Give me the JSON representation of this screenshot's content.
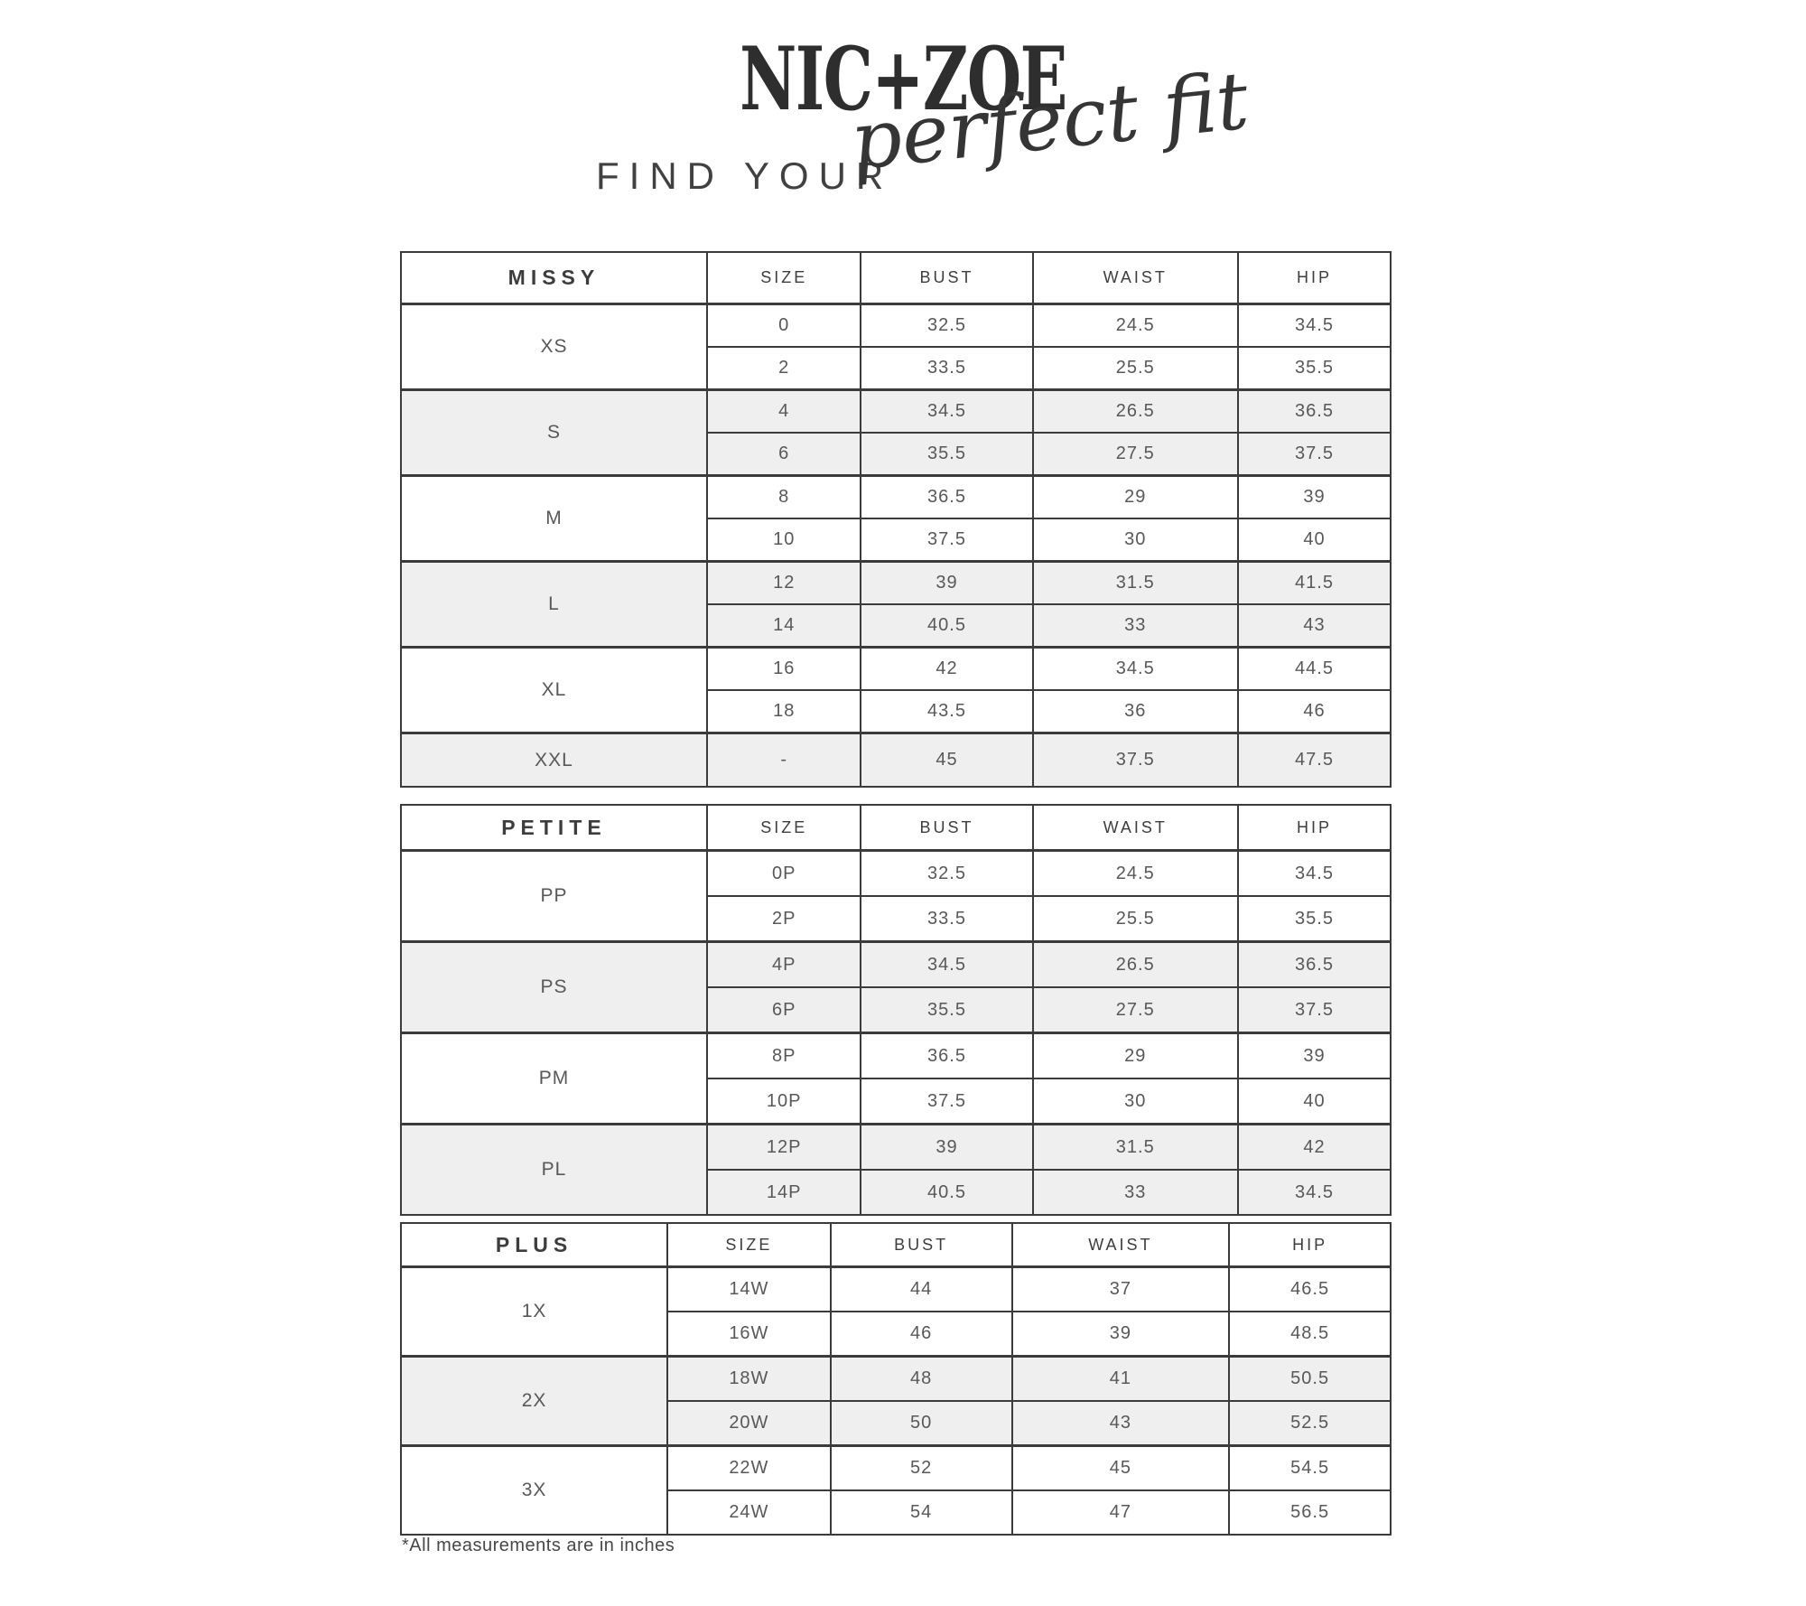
{
  "header": {
    "brand": "NIC+ZOE",
    "tagline_prefix": "FIND YOUR",
    "tagline_script": "perfect fit"
  },
  "colors": {
    "border": "#3b3b3b",
    "row_shade": "#efefef",
    "text_primary": "#3d3d3d",
    "text_secondary": "#585858"
  },
  "tables": [
    {
      "id": "missy",
      "title": "MISSY",
      "columns": [
        "SIZE",
        "BUST",
        "WAIST",
        "HIP"
      ],
      "groups": [
        {
          "label": "XS",
          "shaded": false,
          "rows": [
            [
              "0",
              "32.5",
              "24.5",
              "34.5"
            ],
            [
              "2",
              "33.5",
              "25.5",
              "35.5"
            ]
          ]
        },
        {
          "label": "S",
          "shaded": true,
          "rows": [
            [
              "4",
              "34.5",
              "26.5",
              "36.5"
            ],
            [
              "6",
              "35.5",
              "27.5",
              "37.5"
            ]
          ]
        },
        {
          "label": "M",
          "shaded": false,
          "rows": [
            [
              "8",
              "36.5",
              "29",
              "39"
            ],
            [
              "10",
              "37.5",
              "30",
              "40"
            ]
          ]
        },
        {
          "label": "L",
          "shaded": true,
          "rows": [
            [
              "12",
              "39",
              "31.5",
              "41.5"
            ],
            [
              "14",
              "40.5",
              "33",
              "43"
            ]
          ]
        },
        {
          "label": "XL",
          "shaded": false,
          "rows": [
            [
              "16",
              "42",
              "34.5",
              "44.5"
            ],
            [
              "18",
              "43.5",
              "36",
              "46"
            ]
          ]
        },
        {
          "label": "XXL",
          "shaded": true,
          "rows": [
            [
              "-",
              "45",
              "37.5",
              "47.5"
            ]
          ]
        }
      ]
    },
    {
      "id": "petite",
      "title": "PETITE",
      "columns": [
        "SIZE",
        "BUST",
        "WAIST",
        "HIP"
      ],
      "groups": [
        {
          "label": "PP",
          "shaded": false,
          "rows": [
            [
              "0P",
              "32.5",
              "24.5",
              "34.5"
            ],
            [
              "2P",
              "33.5",
              "25.5",
              "35.5"
            ]
          ]
        },
        {
          "label": "PS",
          "shaded": true,
          "rows": [
            [
              "4P",
              "34.5",
              "26.5",
              "36.5"
            ],
            [
              "6P",
              "35.5",
              "27.5",
              "37.5"
            ]
          ]
        },
        {
          "label": "PM",
          "shaded": false,
          "rows": [
            [
              "8P",
              "36.5",
              "29",
              "39"
            ],
            [
              "10P",
              "37.5",
              "30",
              "40"
            ]
          ]
        },
        {
          "label": "PL",
          "shaded": true,
          "rows": [
            [
              "12P",
              "39",
              "31.5",
              "42"
            ],
            [
              "14P",
              "40.5",
              "33",
              "34.5"
            ]
          ]
        }
      ]
    },
    {
      "id": "plus",
      "title": "PLUS",
      "columns": [
        "SIZE",
        "BUST",
        "WAIST",
        "HIP"
      ],
      "groups": [
        {
          "label": "1X",
          "shaded": false,
          "rows": [
            [
              "14W",
              "44",
              "37",
              "46.5"
            ],
            [
              "16W",
              "46",
              "39",
              "48.5"
            ]
          ]
        },
        {
          "label": "2X",
          "shaded": true,
          "rows": [
            [
              "18W",
              "48",
              "41",
              "50.5"
            ],
            [
              "20W",
              "50",
              "43",
              "52.5"
            ]
          ]
        },
        {
          "label": "3X",
          "shaded": false,
          "rows": [
            [
              "22W",
              "52",
              "45",
              "54.5"
            ],
            [
              "24W",
              "54",
              "47",
              "56.5"
            ]
          ]
        }
      ]
    }
  ],
  "footnote": "*All measurements are in inches"
}
